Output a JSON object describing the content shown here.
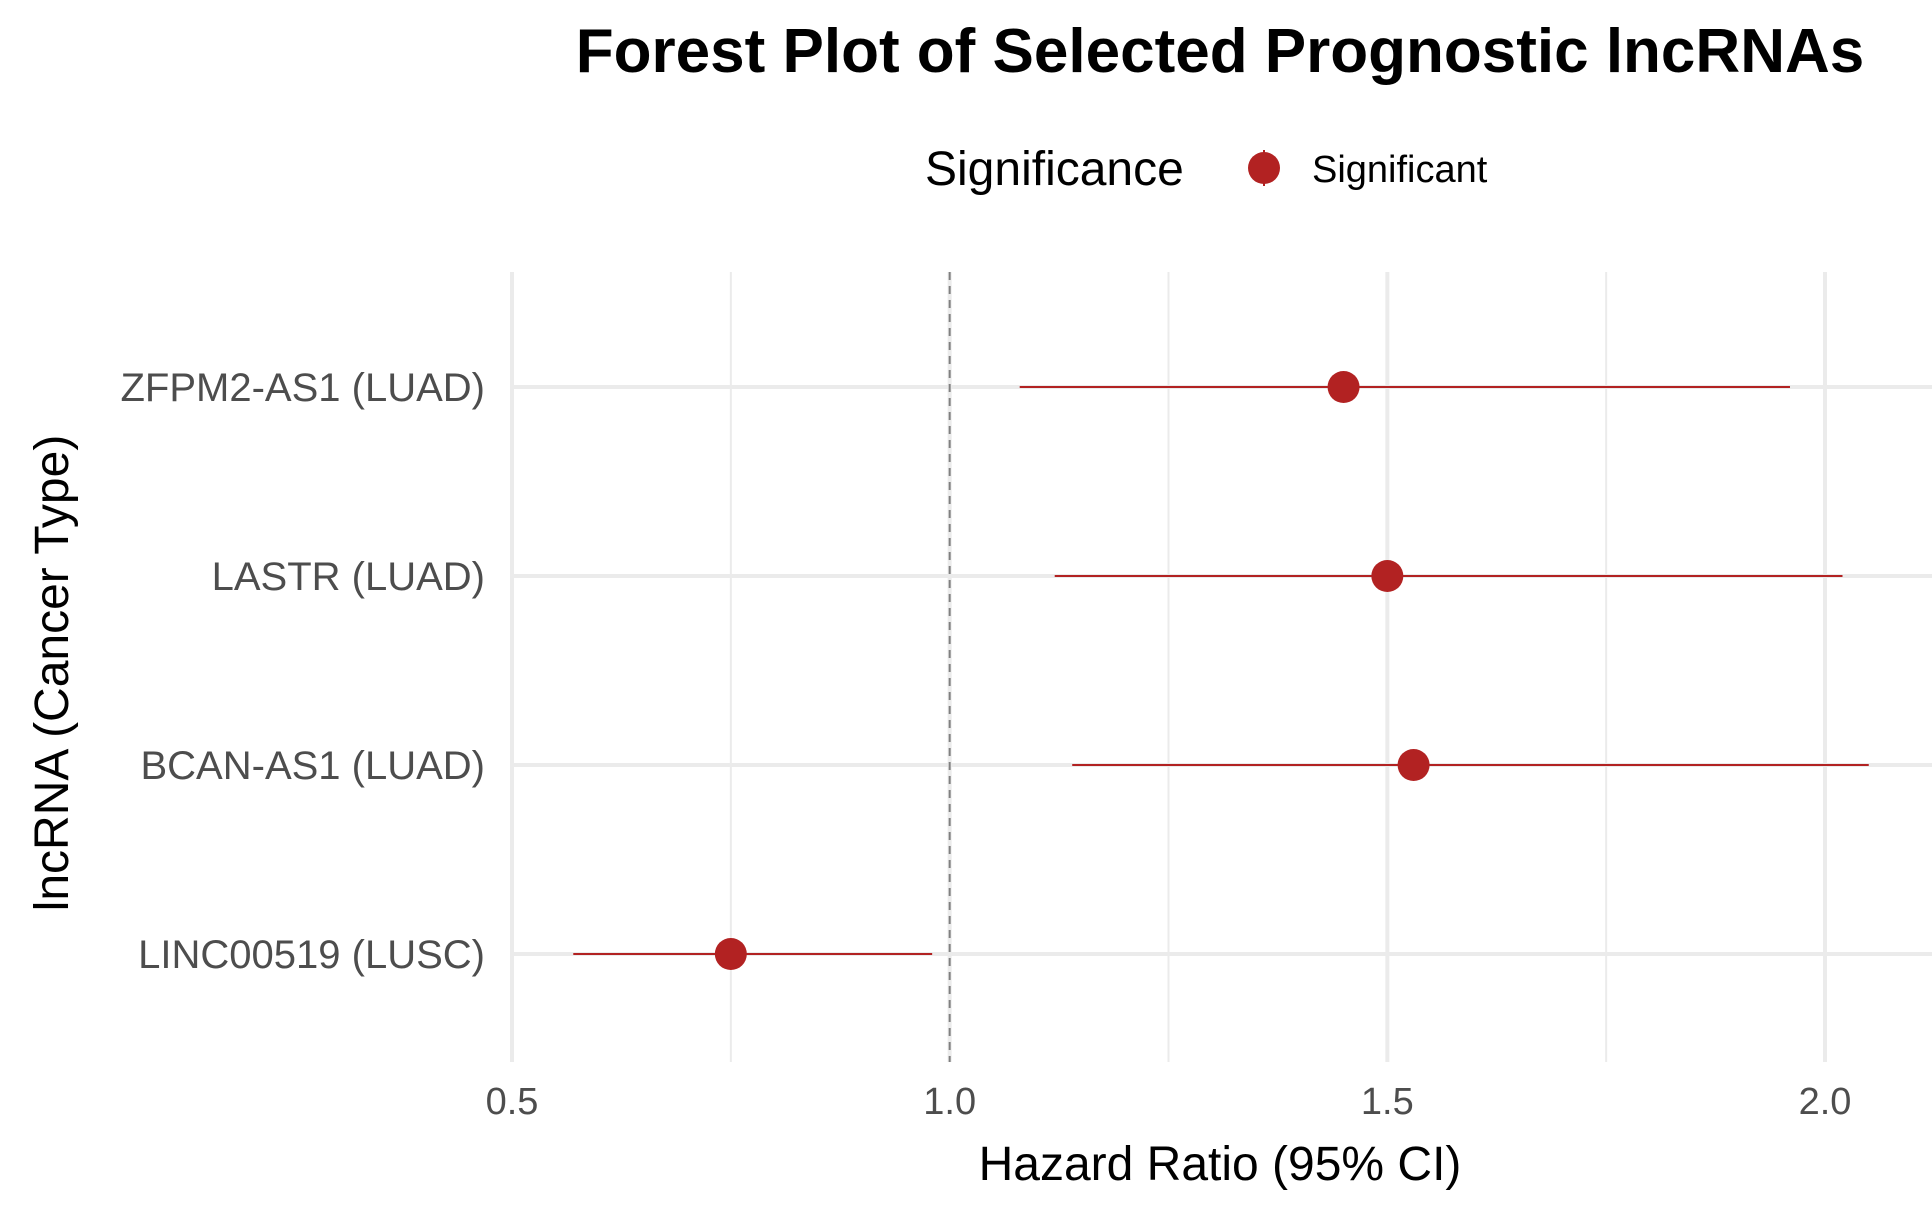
{
  "chart_data": {
    "type": "scatter",
    "subtype": "forest-plot",
    "title": "Forest Plot of Selected Prognostic lncRNAs",
    "xlabel": "Hazard Ratio (95% CI)",
    "ylabel": "lncRNA (Cancer Type)",
    "xlim": [
      0.5,
      2.12
    ],
    "x_ticks": [
      "0.5",
      "1.0",
      "1.5",
      "2.0"
    ],
    "x_tick_values": [
      0.5,
      1.0,
      1.5,
      2.0
    ],
    "x_minor_ticks": [
      0.75,
      1.25,
      1.75
    ],
    "reference_line": 1.0,
    "grid": true,
    "legend": {
      "title": "Significance",
      "position": "top",
      "entries": [
        {
          "label": "Significant",
          "color": "#b22222"
        }
      ]
    },
    "categories": [
      "ZFPM2-AS1 (LUAD)",
      "LASTR (LUAD)",
      "BCAN-AS1 (LUAD)",
      "LINC00519 (LUSC)"
    ],
    "series": [
      {
        "name": "Significant",
        "color": "#b22222",
        "points": [
          {
            "label": "ZFPM2-AS1 (LUAD)",
            "hr": 1.45,
            "lower": 1.08,
            "upper": 1.96
          },
          {
            "label": "LASTR (LUAD)",
            "hr": 1.5,
            "lower": 1.12,
            "upper": 2.02
          },
          {
            "label": "BCAN-AS1 (LUAD)",
            "hr": 1.53,
            "lower": 1.14,
            "upper": 2.05
          },
          {
            "label": "LINC00519 (LUSC)",
            "hr": 0.75,
            "lower": 0.57,
            "upper": 0.98
          }
        ]
      }
    ]
  }
}
